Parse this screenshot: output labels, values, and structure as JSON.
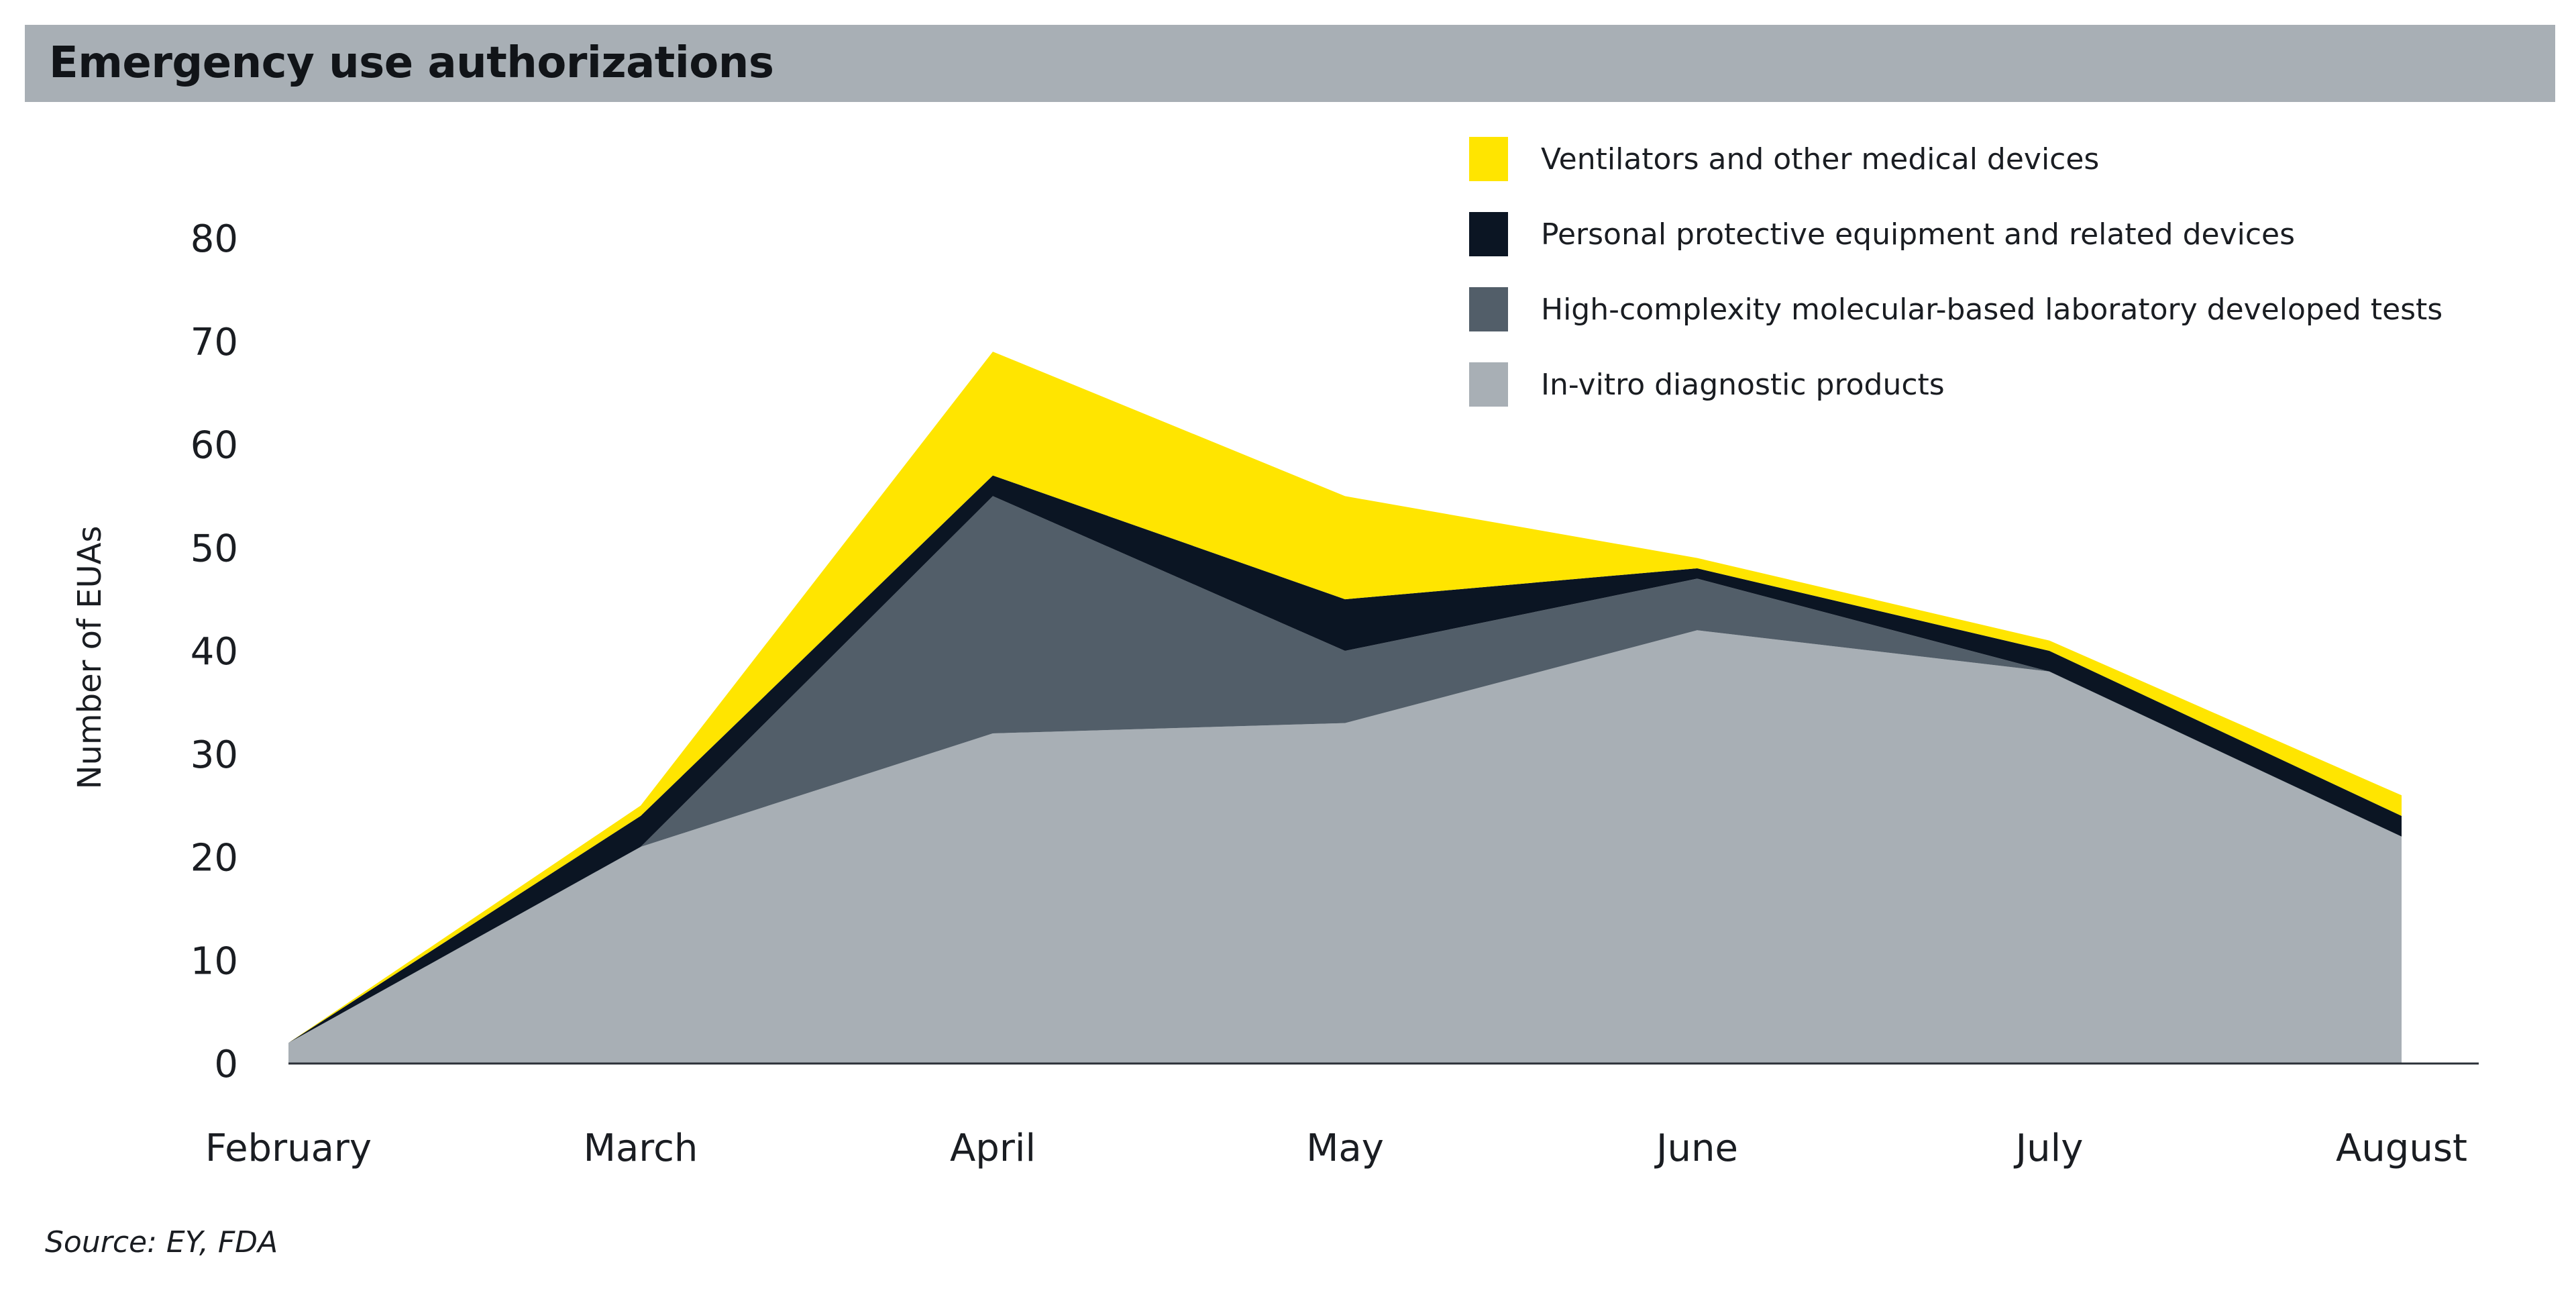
{
  "header": {
    "title": "Emergency use authorizations"
  },
  "source": "Source: EY, FDA",
  "chart_data": {
    "type": "area",
    "stacked": true,
    "title": "Emergency use authorizations",
    "xlabel": "",
    "ylabel": "Number of EUAs",
    "ylim": [
      0,
      80
    ],
    "yticks": [
      0,
      10,
      20,
      30,
      40,
      50,
      60,
      70,
      80
    ],
    "grid": false,
    "legend_position": "top-right",
    "categories": [
      "February",
      "March",
      "April",
      "May",
      "June",
      "July",
      "August"
    ],
    "series": [
      {
        "name": "In-vitro diagnostic products",
        "color": "#a8afb5",
        "values": [
          2,
          21,
          32,
          33,
          42,
          38,
          22
        ]
      },
      {
        "name": "High-complexity molecular-based laboratory developed tests",
        "color": "#525e69",
        "values": [
          0,
          0,
          23,
          7,
          5,
          0,
          0
        ]
      },
      {
        "name": "Personal protective equipment and related devices",
        "color": "#0b1523",
        "values": [
          0,
          3,
          2,
          5,
          1,
          2,
          2
        ]
      },
      {
        "name": "Ventilators and other medical devices",
        "color": "#ffe500",
        "values": [
          0,
          1,
          12,
          10,
          1,
          1,
          2
        ]
      }
    ],
    "legend_order": [
      "Ventilators and other medical devices",
      "Personal protective equipment and related devices",
      "High-complexity molecular-based laboratory developed tests",
      "In-vitro diagnostic products"
    ]
  }
}
